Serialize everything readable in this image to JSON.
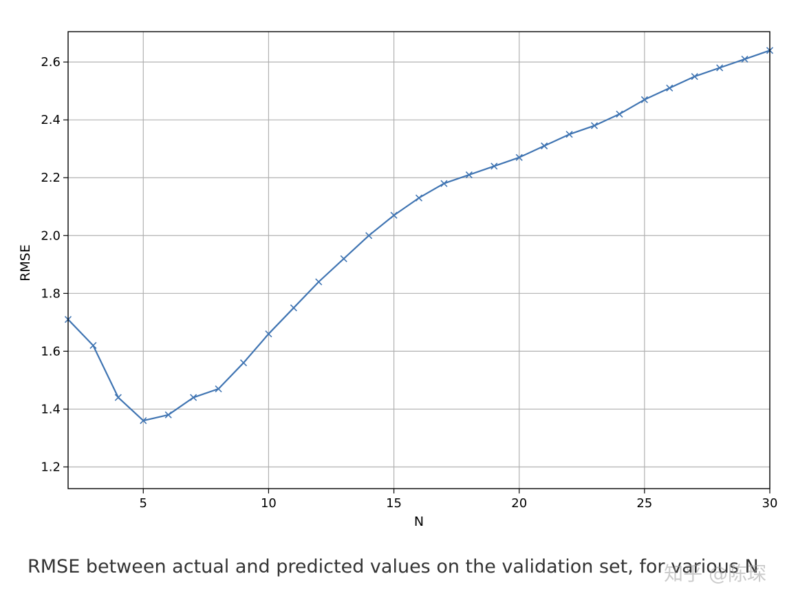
{
  "caption": "RMSE between actual and predicted values on the validation set, for various N",
  "watermark": "知乎 @陈琛",
  "colors": {
    "line": "#3f74b2",
    "grid": "#b0b0b0",
    "axes": "#000000"
  },
  "chart_data": {
    "type": "line",
    "title": "",
    "xlabel": "N",
    "ylabel": "RMSE",
    "xlim": [
      2,
      30
    ],
    "ylim": [
      1.125,
      2.705
    ],
    "xticks": [
      5,
      10,
      15,
      20,
      25,
      30
    ],
    "yticks": [
      1.2,
      1.4,
      1.6,
      1.8,
      2.0,
      2.2,
      2.4,
      2.6
    ],
    "ytick_labels": [
      "1.2",
      "1.4",
      "1.6",
      "1.8",
      "2.0",
      "2.2",
      "2.4",
      "2.6"
    ],
    "grid": true,
    "marker": "x",
    "series": [
      {
        "x": [
          2,
          3,
          4,
          5,
          6,
          7,
          8,
          9,
          10,
          11,
          12,
          13,
          14,
          15,
          16,
          17,
          18,
          19,
          20,
          21,
          22,
          23,
          24,
          25,
          26,
          27,
          28,
          29,
          30
        ],
        "values": [
          1.71,
          1.62,
          1.44,
          1.36,
          1.38,
          1.44,
          1.47,
          1.56,
          1.66,
          1.75,
          1.84,
          1.92,
          2.0,
          2.07,
          2.13,
          2.18,
          2.21,
          2.24,
          2.27,
          2.31,
          2.35,
          2.38,
          2.42,
          2.47,
          2.51,
          2.55,
          2.58,
          2.61,
          2.64
        ]
      }
    ]
  }
}
